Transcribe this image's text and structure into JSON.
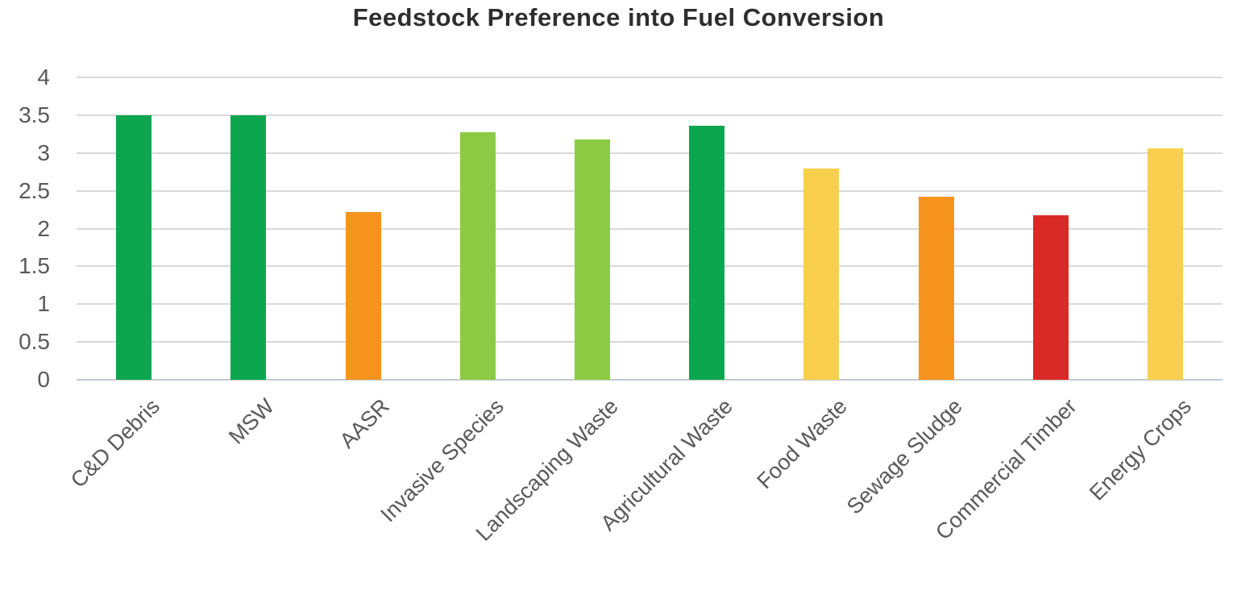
{
  "chart_data": {
    "type": "bar",
    "title": "Feedstock Preference into Fuel Conversion",
    "categories": [
      "C&D Debris",
      "MSW",
      "AASR",
      "Invasive Species",
      "Landscaping Waste",
      "Agricultural Waste",
      "Food Waste",
      "Sewage Sludge",
      "Commercial Timber",
      "Energy Crops"
    ],
    "values": [
      3.5,
      3.5,
      2.22,
      3.27,
      3.18,
      3.36,
      2.8,
      2.42,
      2.18,
      3.06
    ],
    "bar_colors": [
      "#0ca64f",
      "#0ca64f",
      "#f7941d",
      "#8ccb43",
      "#8ccb43",
      "#0ca64f",
      "#f8d04e",
      "#f7941d",
      "#da2a27",
      "#f8d04e"
    ],
    "xlabel": "",
    "ylabel": "",
    "ylim": [
      0,
      4
    ],
    "ytick_step": 0.5,
    "yticks": [
      "0",
      "0.5",
      "1",
      "1.5",
      "2",
      "2.5",
      "3",
      "3.5",
      "4"
    ],
    "grid": true,
    "legend_position": "none",
    "x_tick_rotation_deg": 45
  }
}
